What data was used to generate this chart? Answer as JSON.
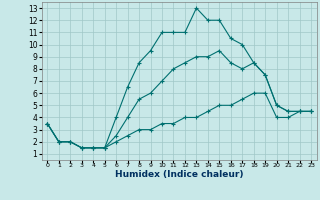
{
  "xlabel": "Humidex (Indice chaleur)",
  "background_color": "#c8e8e8",
  "grid_color": "#a0c8c8",
  "line_color": "#007070",
  "xlim": [
    -0.5,
    23.5
  ],
  "ylim": [
    0.5,
    13.5
  ],
  "x_ticks": [
    0,
    1,
    2,
    3,
    4,
    5,
    6,
    7,
    8,
    9,
    10,
    11,
    12,
    13,
    14,
    15,
    16,
    17,
    18,
    19,
    20,
    21,
    22,
    23
  ],
  "y_ticks": [
    1,
    2,
    3,
    4,
    5,
    6,
    7,
    8,
    9,
    10,
    11,
    12,
    13
  ],
  "series1_x": [
    0,
    1,
    2,
    3,
    4,
    5,
    6,
    7,
    8,
    9,
    10,
    11,
    12,
    13,
    14,
    15,
    16,
    17,
    18,
    19,
    20,
    21,
    22,
    23
  ],
  "series1_y": [
    3.5,
    2.0,
    2.0,
    1.5,
    1.5,
    1.5,
    4.0,
    6.5,
    8.5,
    9.5,
    11.0,
    11.0,
    11.0,
    13.0,
    12.0,
    12.0,
    10.5,
    10.0,
    8.5,
    7.5,
    5.0,
    4.5,
    4.5,
    4.5
  ],
  "series2_x": [
    0,
    1,
    2,
    3,
    4,
    5,
    6,
    7,
    8,
    9,
    10,
    11,
    12,
    13,
    14,
    15,
    16,
    17,
    18,
    19,
    20,
    21,
    22,
    23
  ],
  "series2_y": [
    3.5,
    2.0,
    2.0,
    1.5,
    1.5,
    1.5,
    2.5,
    4.0,
    5.5,
    6.0,
    7.0,
    8.0,
    8.5,
    9.0,
    9.0,
    9.5,
    8.5,
    8.0,
    8.5,
    7.5,
    5.0,
    4.5,
    4.5,
    4.5
  ],
  "series3_x": [
    0,
    1,
    2,
    3,
    4,
    5,
    6,
    7,
    8,
    9,
    10,
    11,
    12,
    13,
    14,
    15,
    16,
    17,
    18,
    19,
    20,
    21,
    22,
    23
  ],
  "series3_y": [
    3.5,
    2.0,
    2.0,
    1.5,
    1.5,
    1.5,
    2.0,
    2.5,
    3.0,
    3.0,
    3.5,
    3.5,
    4.0,
    4.0,
    4.5,
    5.0,
    5.0,
    5.5,
    6.0,
    6.0,
    4.0,
    4.0,
    4.5,
    4.5
  ]
}
